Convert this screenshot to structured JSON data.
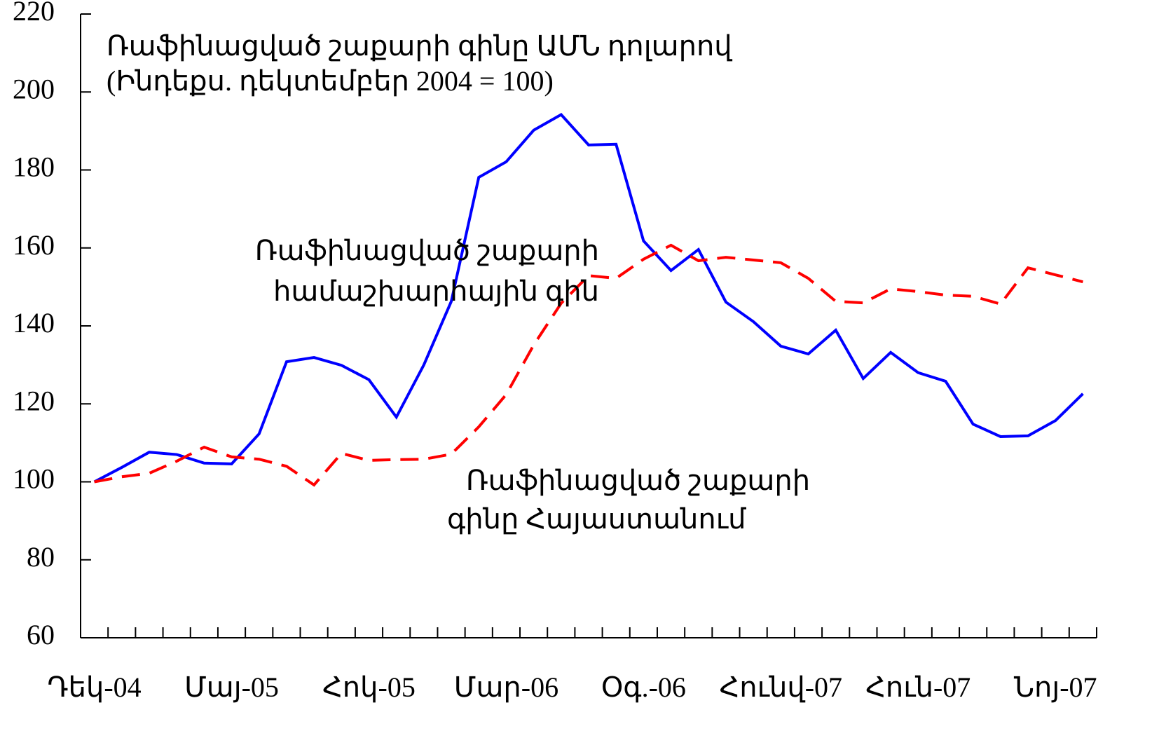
{
  "chart_data": {
    "type": "line",
    "title": "Ռաֆինացված շաքարի գինը ԱՄՆ դոլարով",
    "subtitle": "(Ինդեքս. դեկտեմբեր 2004 = 100)",
    "categories": [
      "Դեկ-04",
      null,
      null,
      null,
      null,
      "Մայ-05",
      null,
      null,
      null,
      null,
      "Հոկ-05",
      null,
      null,
      null,
      null,
      "Մար-06",
      null,
      null,
      null,
      null,
      "Օգ.-06",
      null,
      null,
      null,
      null,
      "Հունվ-07",
      null,
      null,
      null,
      null,
      "Հուն-07",
      null,
      null,
      null,
      null,
      "Նոյ-07",
      null
    ],
    "series": [
      {
        "name": [
          "Ռաֆինացված շաքարի",
          "համաշխարհային գին"
        ],
        "color": "#0000ff",
        "dash": false,
        "values": [
          100,
          103.7,
          107.6,
          107,
          104.8,
          104.6,
          112.3,
          130.8,
          131.9,
          129.9,
          126.2,
          116.6,
          130,
          146.3,
          178.1,
          182.1,
          190.2,
          194.2,
          186.4,
          186.6,
          161.8,
          154.2,
          159.6,
          146.1,
          141.1,
          134.8,
          132.8,
          138.9,
          126.5,
          133.2,
          128,
          125.8,
          114.8,
          111.6,
          111.8,
          115.7,
          122.6
        ]
      },
      {
        "name": [
          "Ռաֆինացված շաքարի",
          "գինը Հայաստանում"
        ],
        "color": "#ff0000",
        "dash": true,
        "values": [
          100,
          101.3,
          102.2,
          105.3,
          108.9,
          106.4,
          105.8,
          104,
          99.2,
          107.3,
          105.5,
          105.7,
          105.8,
          107.1,
          114.1,
          122.4,
          135.1,
          145.8,
          152.9,
          152.2,
          157.1,
          160.7,
          156.7,
          157.6,
          156.9,
          156.2,
          152.2,
          146.3,
          145.9,
          149.5,
          148.8,
          147.9,
          147.6,
          145.6,
          154.9,
          153.1,
          151.3
        ]
      }
    ],
    "ylim": [
      60,
      220
    ],
    "yticks": [
      60,
      80,
      100,
      120,
      140,
      160,
      180,
      200,
      220
    ]
  }
}
